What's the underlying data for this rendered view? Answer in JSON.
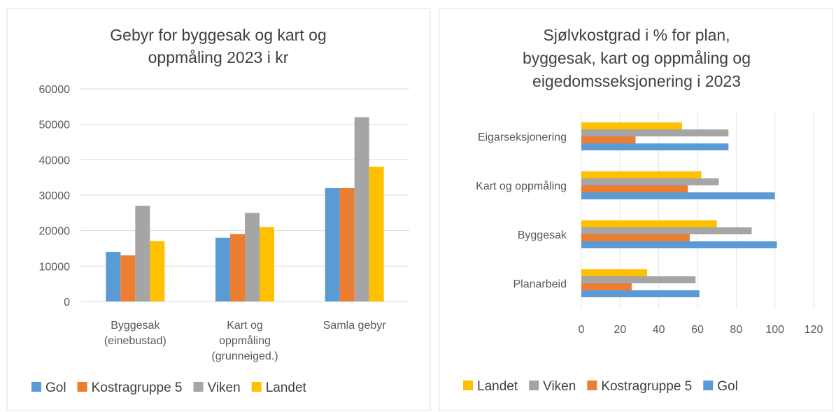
{
  "chart_data": [
    {
      "type": "bar",
      "title": "Gebyr for byggesak og kart og\noppmåling 2023 i kr",
      "categories": [
        "Byggesak\n(einebustad)",
        "Kart og\noppmåling\n(grunneiged.)",
        "Samla gebyr"
      ],
      "series": [
        {
          "name": "Gol",
          "color": "#5b9bd5",
          "values": [
            14000,
            18000,
            32000
          ]
        },
        {
          "name": "Kostragruppe 5",
          "color": "#ed7d31",
          "values": [
            13000,
            19000,
            32000
          ]
        },
        {
          "name": "Viken",
          "color": "#a5a5a5",
          "values": [
            27000,
            25000,
            52000
          ]
        },
        {
          "name": "Landet",
          "color": "#ffc000",
          "values": [
            17000,
            21000,
            38000
          ]
        }
      ],
      "ylim": [
        0,
        60000
      ],
      "yticks": [
        0,
        10000,
        20000,
        30000,
        40000,
        50000,
        60000
      ],
      "grid": true,
      "legend": "bottom"
    },
    {
      "type": "barh",
      "title": "Sjølvkostgrad i % for plan,\nbyggesak, kart og oppmåling og\neigedomsseksjonering i 2023",
      "categories": [
        "Planarbeid",
        "Byggesak",
        "Kart og oppmåling",
        "Eigarseksjonering"
      ],
      "series": [
        {
          "name": "Landet",
          "color": "#ffc000",
          "values": [
            34,
            70,
            62,
            52
          ]
        },
        {
          "name": "Viken",
          "color": "#a5a5a5",
          "values": [
            59,
            88,
            71,
            76
          ]
        },
        {
          "name": "Kostragruppe 5",
          "color": "#ed7d31",
          "values": [
            26,
            56,
            55,
            28
          ]
        },
        {
          "name": "Gol",
          "color": "#5b9bd5",
          "values": [
            61,
            101,
            100,
            76
          ]
        }
      ],
      "xlim": [
        0,
        120
      ],
      "xticks": [
        0,
        20,
        40,
        60,
        80,
        100,
        120
      ],
      "grid": true,
      "legend": "bottom"
    }
  ]
}
